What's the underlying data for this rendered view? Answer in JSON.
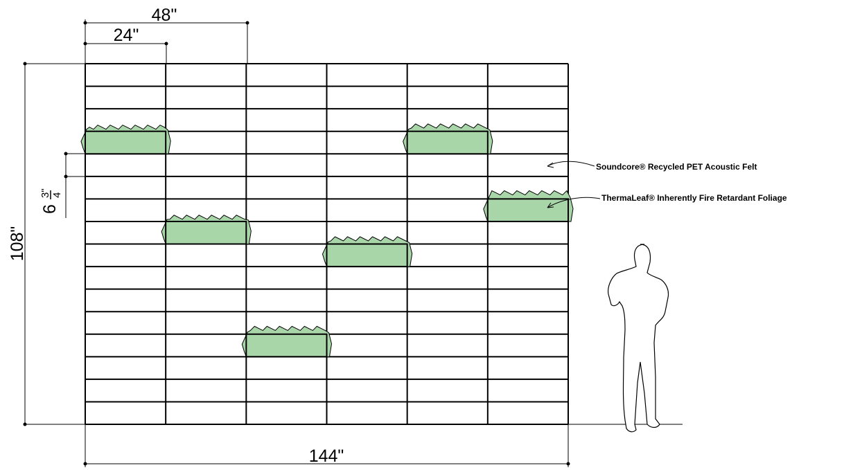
{
  "dimensions": {
    "width_48": "48\"",
    "width_24": "24\"",
    "height": "108\"",
    "width_total": "144\"",
    "panel_height": {
      "whole": "6",
      "numerator": "3\"",
      "denominator": "4"
    }
  },
  "callouts": [
    {
      "label": "Soundcore® Recycled PET Acoustic Felt"
    },
    {
      "label": "ThermaLeaf® Inherently Fire Retardant Foliage"
    }
  ]
}
